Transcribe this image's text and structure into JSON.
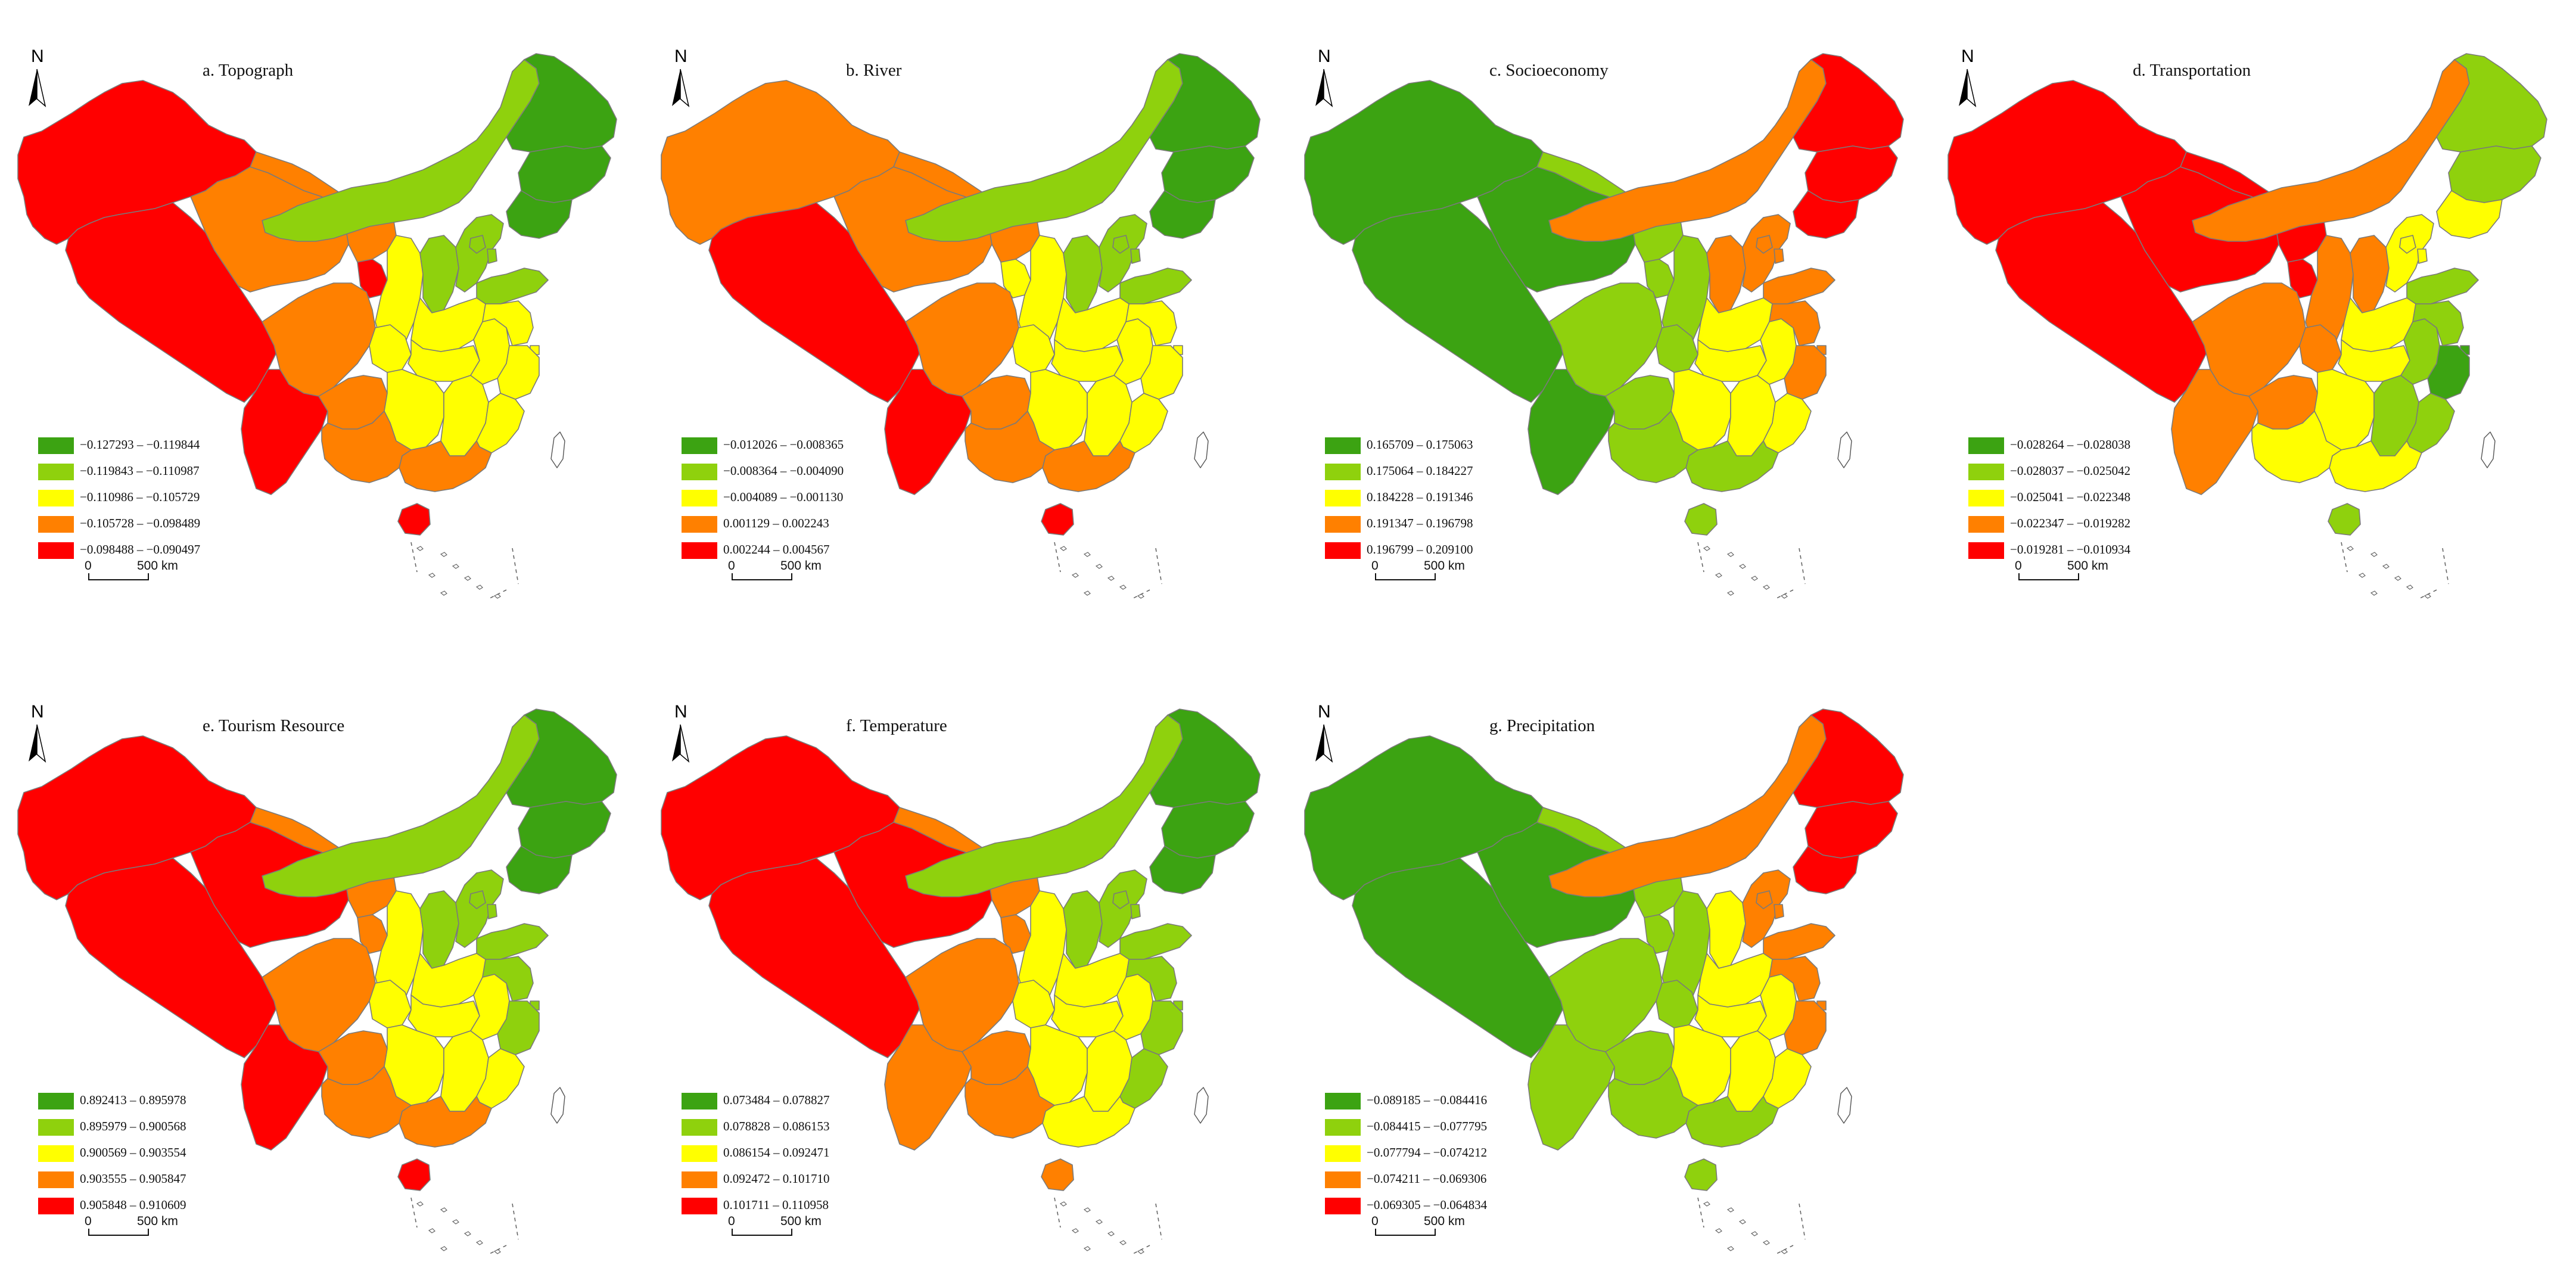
{
  "map_data": {
    "type": "choropleth-panels",
    "north_label": "N",
    "scale": {
      "zero": "0",
      "km": "500 km"
    },
    "class_colors": [
      "#3ca312",
      "#8fd10d",
      "#ffff00",
      "#ff8000",
      "#ff0000"
    ],
    "regions": [
      "xinjiang",
      "tibet",
      "qinghai",
      "gansu",
      "inner_mongolia",
      "heilongjiang",
      "jilin",
      "liaoning",
      "ningxia",
      "shaanxi",
      "shanxi",
      "hebei",
      "beijing",
      "tianjin",
      "shandong",
      "henan",
      "sichuan",
      "chongqing",
      "yunnan",
      "guizhou",
      "hubei",
      "hunan",
      "jiangxi",
      "anhui",
      "jiangsu",
      "shanghai",
      "zhejiang",
      "fujian",
      "guangdong",
      "guangxi",
      "hainan",
      "taiwan"
    ],
    "panels": [
      {
        "title": "a. Topograph",
        "legend": [
          "−0.127293 – −0.119844",
          "−0.119843 – −0.110987",
          "−0.110986 – −0.105729",
          "−0.105728 – −0.098489",
          "−0.098488 – −0.090497"
        ],
        "classes": {
          "xinjiang": 5,
          "tibet": 5,
          "qinghai": 4,
          "gansu": 4,
          "inner_mongolia": 2,
          "heilongjiang": 1,
          "jilin": 1,
          "liaoning": 1,
          "ningxia": 5,
          "shaanxi": 3,
          "shanxi": 2,
          "hebei": 2,
          "beijing": 2,
          "tianjin": 2,
          "shandong": 2,
          "henan": 3,
          "sichuan": 4,
          "chongqing": 3,
          "yunnan": 5,
          "guizhou": 4,
          "hubei": 3,
          "hunan": 3,
          "jiangxi": 3,
          "anhui": 3,
          "jiangsu": 3,
          "shanghai": 3,
          "zhejiang": 3,
          "fujian": 3,
          "guangdong": 4,
          "guangxi": 4,
          "hainan": 5,
          "taiwan": 0
        }
      },
      {
        "title": "b. River",
        "legend": [
          "−0.012026 – −0.008365",
          "−0.008364 – −0.004090",
          "−0.004089 – −0.001130",
          "0.001129 – 0.002243",
          "0.002244 – 0.004567"
        ],
        "classes": {
          "xinjiang": 4,
          "tibet": 5,
          "qinghai": 4,
          "gansu": 4,
          "inner_mongolia": 2,
          "heilongjiang": 1,
          "jilin": 1,
          "liaoning": 1,
          "ningxia": 3,
          "shaanxi": 3,
          "shanxi": 2,
          "hebei": 2,
          "beijing": 2,
          "tianjin": 2,
          "shandong": 2,
          "henan": 3,
          "sichuan": 4,
          "chongqing": 3,
          "yunnan": 5,
          "guizhou": 4,
          "hubei": 3,
          "hunan": 3,
          "jiangxi": 3,
          "anhui": 3,
          "jiangsu": 3,
          "shanghai": 3,
          "zhejiang": 3,
          "fujian": 3,
          "guangdong": 4,
          "guangxi": 4,
          "hainan": 5,
          "taiwan": 0
        }
      },
      {
        "title": "c. Socioeconomy",
        "legend": [
          "0.165709 – 0.175063",
          "0.175064 – 0.184227",
          "0.184228 – 0.191346",
          "0.191347 – 0.196798",
          "0.196799 – 0.209100"
        ],
        "classes": {
          "xinjiang": 1,
          "tibet": 1,
          "qinghai": 1,
          "gansu": 2,
          "inner_mongolia": 4,
          "heilongjiang": 5,
          "jilin": 5,
          "liaoning": 5,
          "ningxia": 2,
          "shaanxi": 2,
          "shanxi": 4,
          "hebei": 4,
          "beijing": 4,
          "tianjin": 4,
          "shandong": 4,
          "henan": 3,
          "sichuan": 2,
          "chongqing": 2,
          "yunnan": 1,
          "guizhou": 2,
          "hubei": 3,
          "hunan": 3,
          "jiangxi": 3,
          "anhui": 3,
          "jiangsu": 4,
          "shanghai": 4,
          "zhejiang": 4,
          "fujian": 3,
          "guangdong": 2,
          "guangxi": 2,
          "hainan": 2,
          "taiwan": 0
        }
      },
      {
        "title": "d. Transportation",
        "legend": [
          "−0.028264 – −0.028038",
          "−0.028037 – −0.025042",
          "−0.025041 – −0.022348",
          "−0.022347 – −0.019282",
          "−0.019281 – −0.010934"
        ],
        "classes": {
          "xinjiang": 5,
          "tibet": 5,
          "qinghai": 5,
          "gansu": 5,
          "inner_mongolia": 4,
          "heilongjiang": 2,
          "jilin": 2,
          "liaoning": 3,
          "ningxia": 5,
          "shaanxi": 4,
          "shanxi": 4,
          "hebei": 3,
          "beijing": 3,
          "tianjin": 3,
          "shandong": 2,
          "henan": 3,
          "sichuan": 4,
          "chongqing": 4,
          "yunnan": 4,
          "guizhou": 4,
          "hubei": 3,
          "hunan": 3,
          "jiangxi": 2,
          "anhui": 2,
          "jiangsu": 2,
          "shanghai": 1,
          "zhejiang": 1,
          "fujian": 2,
          "guangdong": 3,
          "guangxi": 3,
          "hainan": 2,
          "taiwan": 0
        }
      },
      {
        "title": "e. Tourism Resource",
        "legend": [
          "0.892413 – 0.895978",
          "0.895979 – 0.900568",
          "0.900569 – 0.903554",
          "0.903555 – 0.905847",
          "0.905848 – 0.910609"
        ],
        "classes": {
          "xinjiang": 5,
          "tibet": 5,
          "qinghai": 5,
          "gansu": 4,
          "inner_mongolia": 2,
          "heilongjiang": 1,
          "jilin": 1,
          "liaoning": 1,
          "ningxia": 4,
          "shaanxi": 3,
          "shanxi": 2,
          "hebei": 2,
          "beijing": 2,
          "tianjin": 2,
          "shandong": 2,
          "henan": 3,
          "sichuan": 4,
          "chongqing": 3,
          "yunnan": 5,
          "guizhou": 4,
          "hubei": 3,
          "hunan": 3,
          "jiangxi": 3,
          "anhui": 3,
          "jiangsu": 2,
          "shanghai": 2,
          "zhejiang": 2,
          "fujian": 3,
          "guangdong": 4,
          "guangxi": 4,
          "hainan": 5,
          "taiwan": 0
        }
      },
      {
        "title": "f. Temperature",
        "legend": [
          "0.073484 – 0.078827",
          "0.078828 – 0.086153",
          "0.086154 – 0.092471",
          "0.092472 – 0.101710",
          "0.101711 – 0.110958"
        ],
        "classes": {
          "xinjiang": 5,
          "tibet": 5,
          "qinghai": 5,
          "gansu": 4,
          "inner_mongolia": 2,
          "heilongjiang": 1,
          "jilin": 1,
          "liaoning": 1,
          "ningxia": 4,
          "shaanxi": 3,
          "shanxi": 2,
          "hebei": 2,
          "beijing": 2,
          "tianjin": 2,
          "shandong": 2,
          "henan": 3,
          "sichuan": 4,
          "chongqing": 3,
          "yunnan": 4,
          "guizhou": 4,
          "hubei": 3,
          "hunan": 3,
          "jiangxi": 3,
          "anhui": 3,
          "jiangsu": 2,
          "shanghai": 2,
          "zhejiang": 2,
          "fujian": 2,
          "guangdong": 3,
          "guangxi": 4,
          "hainan": 4,
          "taiwan": 0
        }
      },
      {
        "title": "g. Precipitation",
        "legend": [
          "−0.089185 – −0.084416",
          "−0.084415 – −0.077795",
          "−0.077794 – −0.074212",
          "−0.074211 – −0.069306",
          "−0.069305 – −0.064834"
        ],
        "classes": {
          "xinjiang": 1,
          "tibet": 1,
          "qinghai": 1,
          "gansu": 2,
          "inner_mongolia": 4,
          "heilongjiang": 5,
          "jilin": 5,
          "liaoning": 5,
          "ningxia": 2,
          "shaanxi": 2,
          "shanxi": 3,
          "hebei": 4,
          "beijing": 4,
          "tianjin": 4,
          "shandong": 4,
          "henan": 3,
          "sichuan": 2,
          "chongqing": 2,
          "yunnan": 2,
          "guizhou": 2,
          "hubei": 3,
          "hunan": 3,
          "jiangxi": 3,
          "anhui": 3,
          "jiangsu": 4,
          "shanghai": 4,
          "zhejiang": 4,
          "fujian": 3,
          "guangdong": 2,
          "guangxi": 2,
          "hainan": 2,
          "taiwan": 0
        }
      }
    ]
  }
}
